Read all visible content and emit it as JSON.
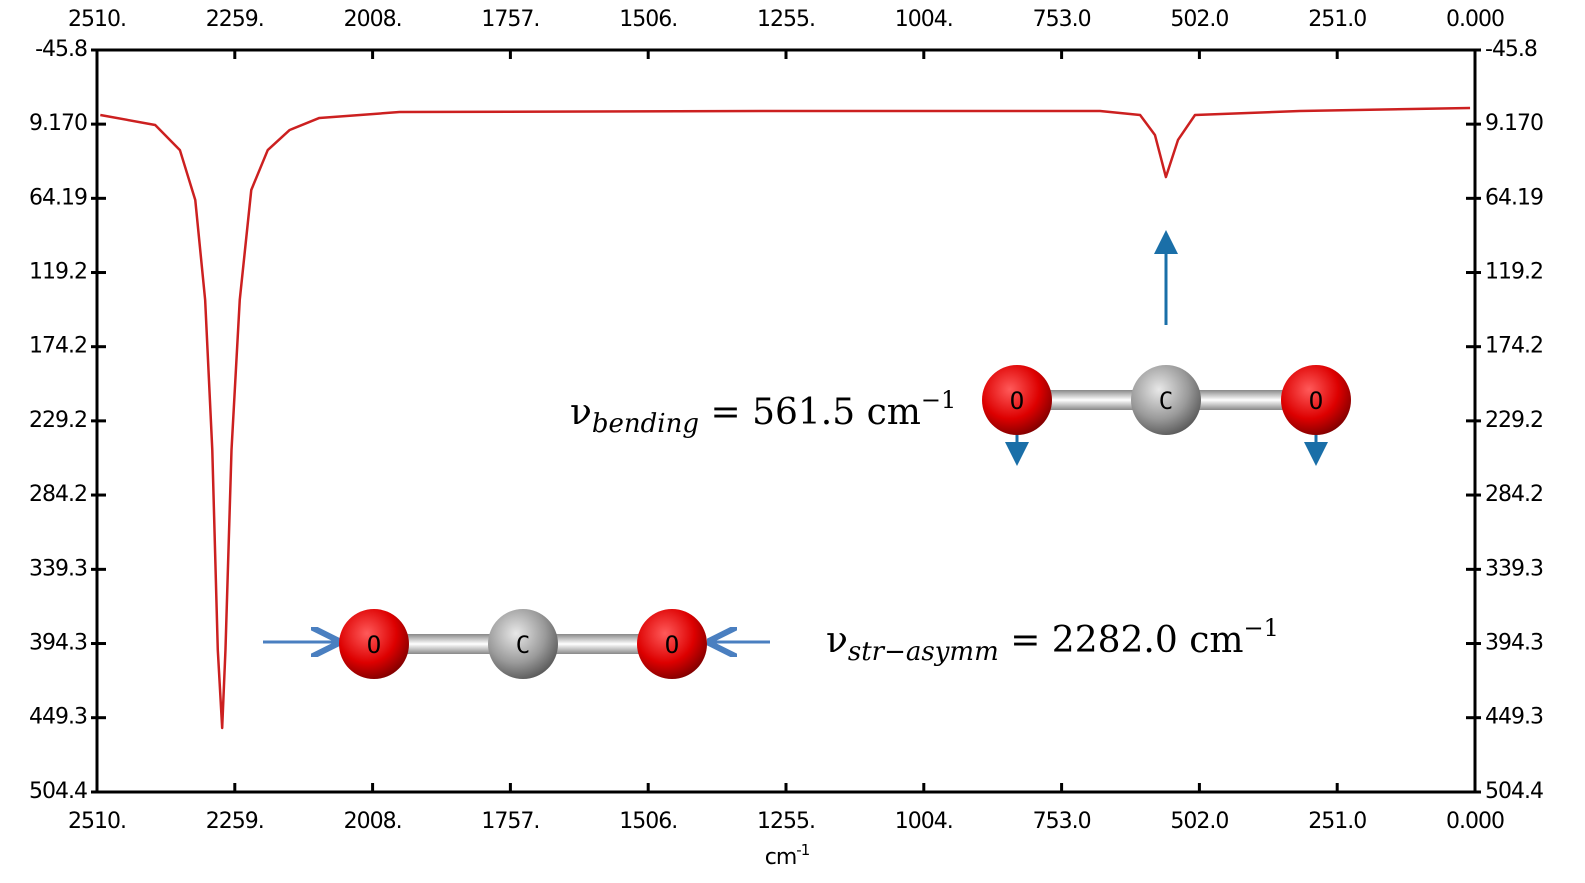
{
  "chart_data": {
    "type": "line",
    "xlabel": "cm",
    "xlabel_superscript": "-1",
    "xlim": [
      2510,
      0
    ],
    "xticks": [
      {
        "value": 2510,
        "label": "2510."
      },
      {
        "value": 2259,
        "label": "2259."
      },
      {
        "value": 2008,
        "label": "2008."
      },
      {
        "value": 1757,
        "label": "1757."
      },
      {
        "value": 1506,
        "label": "1506."
      },
      {
        "value": 1255,
        "label": "1255."
      },
      {
        "value": 1004,
        "label": "1004."
      },
      {
        "value": 753,
        "label": "753.0"
      },
      {
        "value": 502,
        "label": "502.0"
      },
      {
        "value": 251,
        "label": "251.0"
      },
      {
        "value": 0,
        "label": "0.000"
      }
    ],
    "ylim": [
      504.4,
      -45.8
    ],
    "yticks": [
      -45.8,
      {
        "value": 9.17,
        "label": "9.170"
      },
      64.19,
      119.2,
      174.2,
      229.2,
      284.2,
      339.3,
      394.3,
      449.3,
      504.4
    ],
    "x": [
      2504,
      2404,
      2359,
      2331,
      2313,
      2300,
      2290,
      2282,
      2276,
      2265,
      2250,
      2229,
      2199,
      2159,
      2105,
      1959,
      1230,
      683,
      610,
      583,
      563,
      541,
      510,
      319,
      9
    ],
    "series": [
      {
        "color": "#cc2020",
        "values": [
          2.4,
          9.8,
          28.4,
          65.4,
          139.6,
          250.8,
          399,
          456.9,
          399,
          250.8,
          139.6,
          58,
          28.4,
          13.5,
          4.6,
          0.2,
          -0.6,
          -0.6,
          2.4,
          17.2,
          48.4,
          20.9,
          2.4,
          -0.6,
          -2.8
        ]
      }
    ],
    "annotations": [
      {
        "symbol": "ν",
        "subscript": "bending",
        "text": " = 561.5 cm",
        "superscript": "−1",
        "atoms": [
          "O",
          "C",
          "O"
        ]
      },
      {
        "symbol": "ν",
        "subscript": "str−asymm",
        "text": " = 2282.0 cm",
        "superscript": "−1",
        "atoms": [
          "O",
          "C",
          "O"
        ]
      }
    ]
  }
}
